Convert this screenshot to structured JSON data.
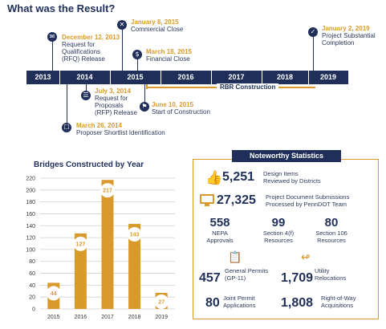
{
  "page": {
    "title": "What was the Result?"
  },
  "timeline": {
    "years": [
      "2013",
      "2014",
      "2015",
      "2016",
      "2017",
      "2018",
      "2019"
    ],
    "rbr_label": "RBR Construction",
    "events": {
      "rfq": {
        "date": "December 12, 2013",
        "desc": [
          "Request for",
          "Qualifications",
          "(RFQ) Release"
        ]
      },
      "commercial": {
        "date": "January 8, 2015",
        "desc": [
          "Commercial Close"
        ]
      },
      "financial": {
        "date": "March 18, 2015",
        "desc": [
          "Financial Close"
        ]
      },
      "substantial": {
        "date": "January 2, 2019",
        "desc": [
          "Project Substantial",
          "Completion"
        ]
      },
      "rfp": {
        "date": "July 3, 2014",
        "desc": [
          "Request for",
          "Proposals",
          "(RFP) Release"
        ]
      },
      "construction": {
        "date": "June 10, 2015",
        "desc": [
          "Start of Construction"
        ]
      },
      "shortlist": {
        "date": "March 26, 2014",
        "desc": [
          "Proposer Shortlist Identification"
        ]
      }
    },
    "icons": {
      "rfq": "megaphone-icon",
      "commercial": "x-icon",
      "financial": "dollar-icon",
      "substantial": "check-icon",
      "rfp": "document-icon",
      "construction": "worker-icon",
      "shortlist": "clipboard-icon"
    }
  },
  "chart_data": {
    "type": "bar",
    "title": "Bridges Constructed by Year",
    "categories": [
      "2015",
      "2016",
      "2017",
      "2018",
      "2019"
    ],
    "values": [
      44,
      127,
      217,
      143,
      27
    ],
    "ylim": [
      0,
      220
    ],
    "yticks": [
      0,
      20,
      40,
      60,
      80,
      100,
      120,
      140,
      160,
      180,
      200,
      220
    ],
    "grid": true,
    "bar_color": "#d99a2b"
  },
  "stats": {
    "header": "Noteworthy Statistics",
    "design_items": {
      "value": "5,251",
      "desc": [
        "Design Items",
        "Reviewed by Districts"
      ]
    },
    "submissions": {
      "value": "27,325",
      "desc": [
        "Project Document Submissions",
        "Processed by PennDOT Team"
      ]
    },
    "nepa": {
      "value": "558",
      "desc": [
        "NEPA",
        "Approvals"
      ]
    },
    "section4f": {
      "value": "99",
      "desc": [
        "Section 4(f)",
        "Resources"
      ]
    },
    "section106": {
      "value": "80",
      "desc": [
        "Section 106",
        "Resources"
      ]
    },
    "general_permits": {
      "value": "457",
      "desc": [
        "General Permits",
        "(GP-11)"
      ]
    },
    "utility": {
      "value": "1,709",
      "desc": [
        "Utility",
        "Relocations"
      ]
    },
    "joint_permit": {
      "value": "80",
      "desc": [
        "Joint Permit",
        "Applications"
      ]
    },
    "row": {
      "value": "1,808",
      "desc": [
        "Right-of-Way",
        "Acquisitions"
      ]
    }
  },
  "colors": {
    "navy": "#1f2f5a",
    "gold": "#d99a2b"
  }
}
